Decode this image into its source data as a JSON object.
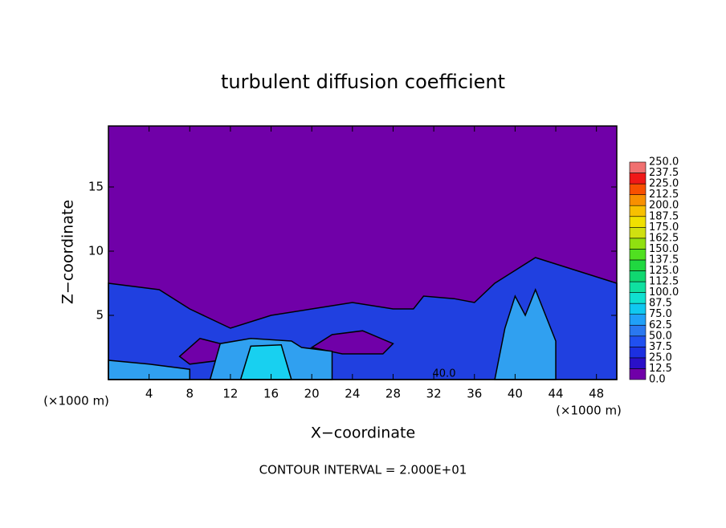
{
  "chart_data": {
    "type": "contour",
    "title": "turbulent diffusion coefficient",
    "x_label": "X−coordinate",
    "y_label": "Z−coordinate",
    "x_unit_left": "(×1000 m)",
    "x_unit_right": "(×1000 m)",
    "footer": "CONTOUR INTERVAL = 2.000E+01",
    "contour_label": "40.0",
    "xlim": [
      0,
      50
    ],
    "ylim": [
      0,
      19.75
    ],
    "xticks": [
      4,
      8,
      12,
      16,
      20,
      24,
      28,
      32,
      36,
      40,
      44,
      48
    ],
    "yticks": [
      5,
      10,
      15
    ],
    "levels": [
      {
        "value": 0,
        "label": "0.0"
      },
      12.5,
      {
        "value": 25,
        "label": "25.0"
      },
      37.5,
      {
        "value": 50,
        "label": "50.0"
      },
      62.5,
      {
        "value": 75,
        "label": "75.0"
      },
      87.5,
      {
        "value": 100,
        "label": "100.0"
      },
      112.5,
      {
        "value": 125,
        "label": "125.0"
      },
      137.5,
      {
        "value": 150,
        "label": "150.0"
      },
      162.5,
      {
        "value": 175,
        "label": "175.0"
      },
      187.5,
      {
        "value": 200,
        "label": "200.0"
      },
      212.5,
      {
        "value": 225,
        "label": "225.0"
      },
      237.5,
      {
        "value": 250,
        "label": "250.0"
      }
    ],
    "colors": [
      "#7000a8",
      "#2a10c8",
      "#1c30e0",
      "#2050f0",
      "#2a78f0",
      "#20a0f8",
      "#10c8f0",
      "#10e0d0",
      "#10e0a0",
      "#10d870",
      "#20d840",
      "#50e020",
      "#90e010",
      "#d0e010",
      "#f0e000",
      "#f8c000",
      "#f89000",
      "#f85000",
      "#f01818",
      "#f07070"
    ],
    "regions": [
      {
        "color": "#7000a8",
        "x": [
          0,
          50,
          50,
          0
        ],
        "z": [
          0,
          0,
          19.75,
          19.75
        ]
      },
      {
        "color": "#2040e0",
        "x": [
          0,
          0,
          5,
          8,
          12,
          16,
          20,
          24,
          28,
          30,
          31,
          34,
          36,
          38,
          40,
          42,
          44,
          46,
          50,
          50
        ],
        "z": [
          0,
          7.5,
          7,
          5.5,
          4,
          5,
          5.5,
          6,
          5.5,
          5.5,
          6.5,
          6.3,
          6,
          7.5,
          8.5,
          9.5,
          9,
          8.5,
          7.5,
          0
        ]
      },
      {
        "color": "#7000a8",
        "x": [
          7,
          9,
          12,
          11,
          8
        ],
        "z": [
          1.8,
          3.2,
          2.6,
          1.5,
          1.2
        ]
      },
      {
        "color": "#7000a8",
        "x": [
          20,
          22,
          25,
          28,
          27,
          23
        ],
        "z": [
          2.5,
          3.5,
          3.8,
          2.8,
          2,
          2
        ]
      },
      {
        "color": "#30a0f0",
        "x": [
          0,
          0,
          4,
          8,
          8
        ],
        "z": [
          0,
          1.5,
          1.2,
          0.8,
          0
        ]
      },
      {
        "color": "#30a0f0",
        "x": [
          10,
          11,
          14,
          18,
          19,
          22,
          22
        ],
        "z": [
          0,
          2.8,
          3.2,
          3,
          2.5,
          2.2,
          0
        ]
      },
      {
        "color": "#30a0f0",
        "x": [
          38,
          39,
          40,
          41,
          42,
          43,
          44,
          44
        ],
        "z": [
          0,
          4,
          6.5,
          5,
          7,
          5,
          3,
          0
        ]
      },
      {
        "color": "#18d0f0",
        "x": [
          13,
          14,
          17,
          18
        ],
        "z": [
          0,
          2.6,
          2.7,
          0
        ]
      }
    ]
  }
}
